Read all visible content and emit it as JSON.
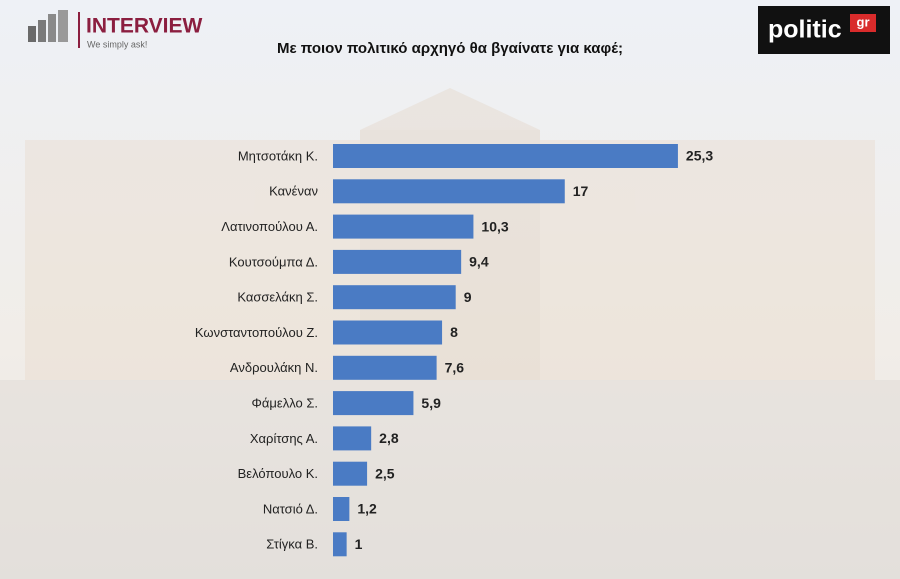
{
  "branding": {
    "left_name": "INTERVIEW",
    "left_tagline": "We simply ask!",
    "right_name": "politic",
    "right_suffix": "gr"
  },
  "chart_data": {
    "type": "hbar",
    "title": "Με ποιον πολιτικό αρχηγό θα βγαίνατε για καφέ;",
    "categories": [
      "Μητσοτάκη Κ.",
      "Κανέναν",
      "Λατινοπούλου Α.",
      "Κουτσούμπα Δ.",
      "Κασσελάκη Σ.",
      "Κωνσταντοπούλου Ζ.",
      "Ανδρουλάκη Ν.",
      "Φάμελλο Σ.",
      "Χαρίτσης Α.",
      "Βελόπουλο Κ.",
      "Νατσιό Δ.",
      "Στίγκα Β."
    ],
    "values": [
      25.3,
      17,
      10.3,
      9.4,
      9,
      8,
      7.6,
      5.9,
      2.8,
      2.5,
      1.2,
      1
    ],
    "value_labels": [
      "25,3",
      "17",
      "10,3",
      "9,4",
      "9",
      "8",
      "7,6",
      "5,9",
      "2,8",
      "2,5",
      "1,2",
      "1"
    ],
    "color": "#4a7bc4",
    "xlim": [
      0,
      30
    ]
  }
}
